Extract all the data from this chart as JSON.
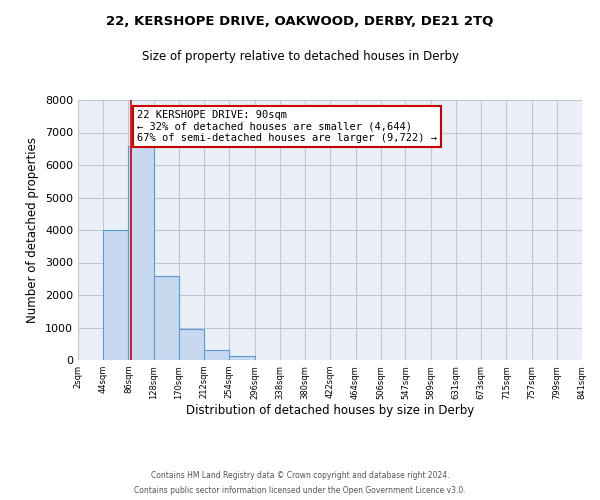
{
  "title": "22, KERSHOPE DRIVE, OAKWOOD, DERBY, DE21 2TQ",
  "subtitle": "Size of property relative to detached houses in Derby",
  "xlabel": "Distribution of detached houses by size in Derby",
  "ylabel": "Number of detached properties",
  "bin_edges": [
    2,
    44,
    86,
    128,
    170,
    212,
    254,
    296,
    338,
    380,
    422,
    464,
    506,
    547,
    589,
    631,
    673,
    715,
    757,
    799,
    841
  ],
  "bar_heights": [
    0,
    4000,
    6600,
    2600,
    950,
    310,
    115,
    0,
    0,
    0,
    0,
    0,
    0,
    0,
    0,
    0,
    0,
    0,
    0,
    0
  ],
  "bar_color": "#c8d9ef",
  "bar_edge_color": "#5b9bd5",
  "property_size": 90,
  "red_line_color": "#cc0000",
  "annotation_title": "22 KERSHOPE DRIVE: 90sqm",
  "annotation_line1": "← 32% of detached houses are smaller (4,644)",
  "annotation_line2": "67% of semi-detached houses are larger (9,722) →",
  "annotation_box_color": "#ffffff",
  "annotation_box_edge": "#cc0000",
  "ylim": [
    0,
    8000
  ],
  "yticks": [
    0,
    1000,
    2000,
    3000,
    4000,
    5000,
    6000,
    7000,
    8000
  ],
  "tick_labels": [
    "2sqm",
    "44sqm",
    "86sqm",
    "128sqm",
    "170sqm",
    "212sqm",
    "254sqm",
    "296sqm",
    "338sqm",
    "380sqm",
    "422sqm",
    "464sqm",
    "506sqm",
    "547sqm",
    "589sqm",
    "631sqm",
    "673sqm",
    "715sqm",
    "757sqm",
    "799sqm",
    "841sqm"
  ],
  "footer1": "Contains HM Land Registry data © Crown copyright and database right 2024.",
  "footer2": "Contains public sector information licensed under the Open Government Licence v3.0.",
  "background_color": "#ffffff",
  "grid_color": "#c0c8d8",
  "plot_bg_color": "#eaeff8"
}
